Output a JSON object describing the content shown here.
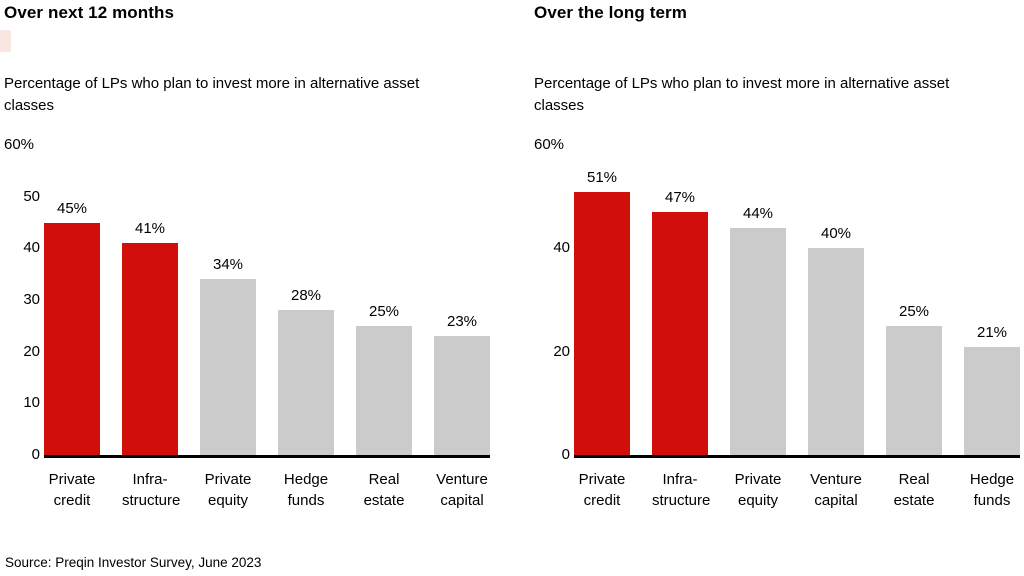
{
  "page": {
    "source_note": "Source: Preqin Investor Survey, June 2023"
  },
  "colors": {
    "red": "#d10e0a",
    "gray": "#cbcbcb",
    "axis": "#000000"
  },
  "chart_data": [
    {
      "type": "bar",
      "title": "Over next 12 months",
      "subtitle": "Percentage of LPs who plan to invest more in alternative asset classes",
      "ylabel": "Percentage of LPs",
      "ymax": 60,
      "ymax_label": "60%",
      "grid": false,
      "y_ticks": [
        {
          "label": "0",
          "value": 0
        },
        {
          "label": "10",
          "value": 10
        },
        {
          "label": "20",
          "value": 20
        },
        {
          "label": "30",
          "value": 30
        },
        {
          "label": "40",
          "value": 40
        },
        {
          "label": "50",
          "value": 50
        }
      ],
      "bars": [
        {
          "label": "Private\ncredit",
          "value": 45,
          "value_label": "45%",
          "color": "red"
        },
        {
          "label": "Infra-\nstructure",
          "value": 41,
          "value_label": "41%",
          "color": "red"
        },
        {
          "label": "Private\nequity",
          "value": 34,
          "value_label": "34%",
          "color": "gray"
        },
        {
          "label": "Hedge\nfunds",
          "value": 28,
          "value_label": "28%",
          "color": "gray"
        },
        {
          "label": "Real\nestate",
          "value": 25,
          "value_label": "25%",
          "color": "gray"
        },
        {
          "label": "Venture\ncapital",
          "value": 23,
          "value_label": "23%",
          "color": "gray"
        }
      ]
    },
    {
      "type": "bar",
      "title": "Over the long term",
      "subtitle": "Percentage of LPs who plan to invest more in alternative asset classes",
      "ylabel": "Percentage of LPs",
      "ymax": 60,
      "ymax_label": "60%",
      "grid": false,
      "y_ticks": [
        {
          "label": "0",
          "value": 0
        },
        {
          "label": "20",
          "value": 20
        },
        {
          "label": "40",
          "value": 40
        }
      ],
      "bars": [
        {
          "label": "Private\ncredit",
          "value": 51,
          "value_label": "51%",
          "color": "red"
        },
        {
          "label": "Infra-\nstructure",
          "value": 47,
          "value_label": "47%",
          "color": "red"
        },
        {
          "label": "Private\nequity",
          "value": 44,
          "value_label": "44%",
          "color": "gray"
        },
        {
          "label": "Venture\ncapital",
          "value": 40,
          "value_label": "40%",
          "color": "gray"
        },
        {
          "label": "Real\nestate",
          "value": 25,
          "value_label": "25%",
          "color": "gray"
        },
        {
          "label": "Hedge\nfunds",
          "value": 21,
          "value_label": "21%",
          "color": "gray"
        }
      ]
    }
  ]
}
